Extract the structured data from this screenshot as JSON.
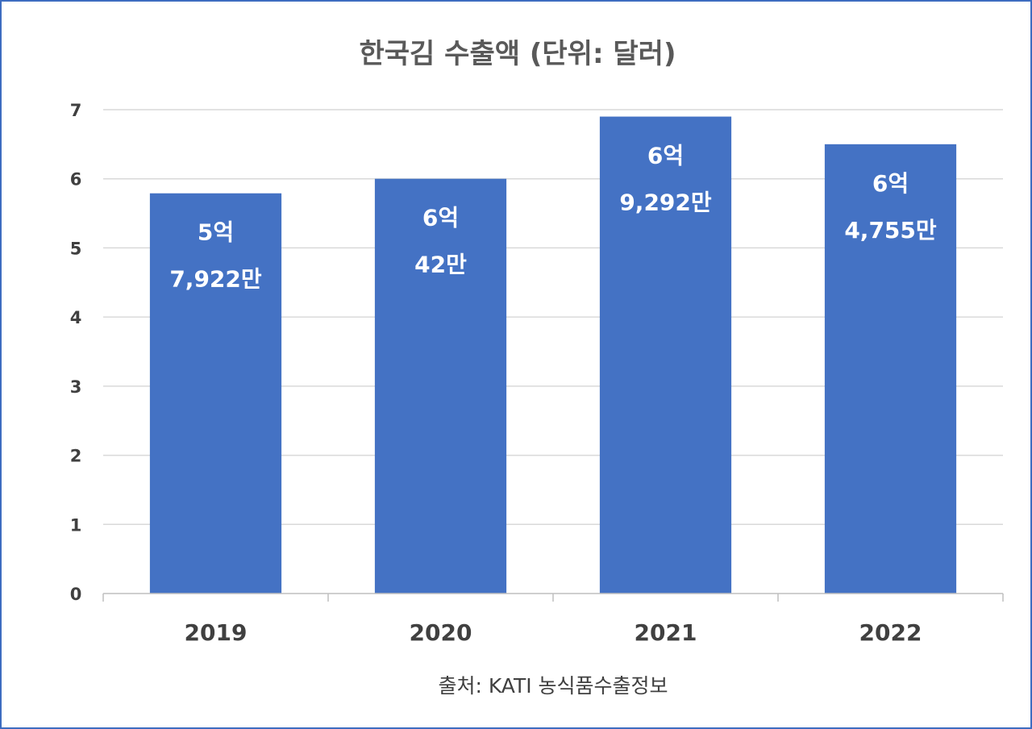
{
  "chart_data": {
    "type": "bar",
    "title": "한국김 수출액 (단위: 달러)",
    "categories": [
      "2019",
      "2020",
      "2021",
      "2022"
    ],
    "values": [
      5.79,
      6.0,
      6.9,
      6.5
    ],
    "data_labels": [
      [
        "5억",
        "7,922만"
      ],
      [
        "6억",
        "42만"
      ],
      [
        "6억",
        "9,292만"
      ],
      [
        "6억",
        "4,755만"
      ]
    ],
    "yticks": [
      "0",
      "1",
      "2",
      "3",
      "4",
      "5",
      "6",
      "7"
    ],
    "ylim": [
      0,
      7
    ],
    "grid": true,
    "bar_color": "#4472c4",
    "source": "출처: KATI 농식품수출정보"
  }
}
